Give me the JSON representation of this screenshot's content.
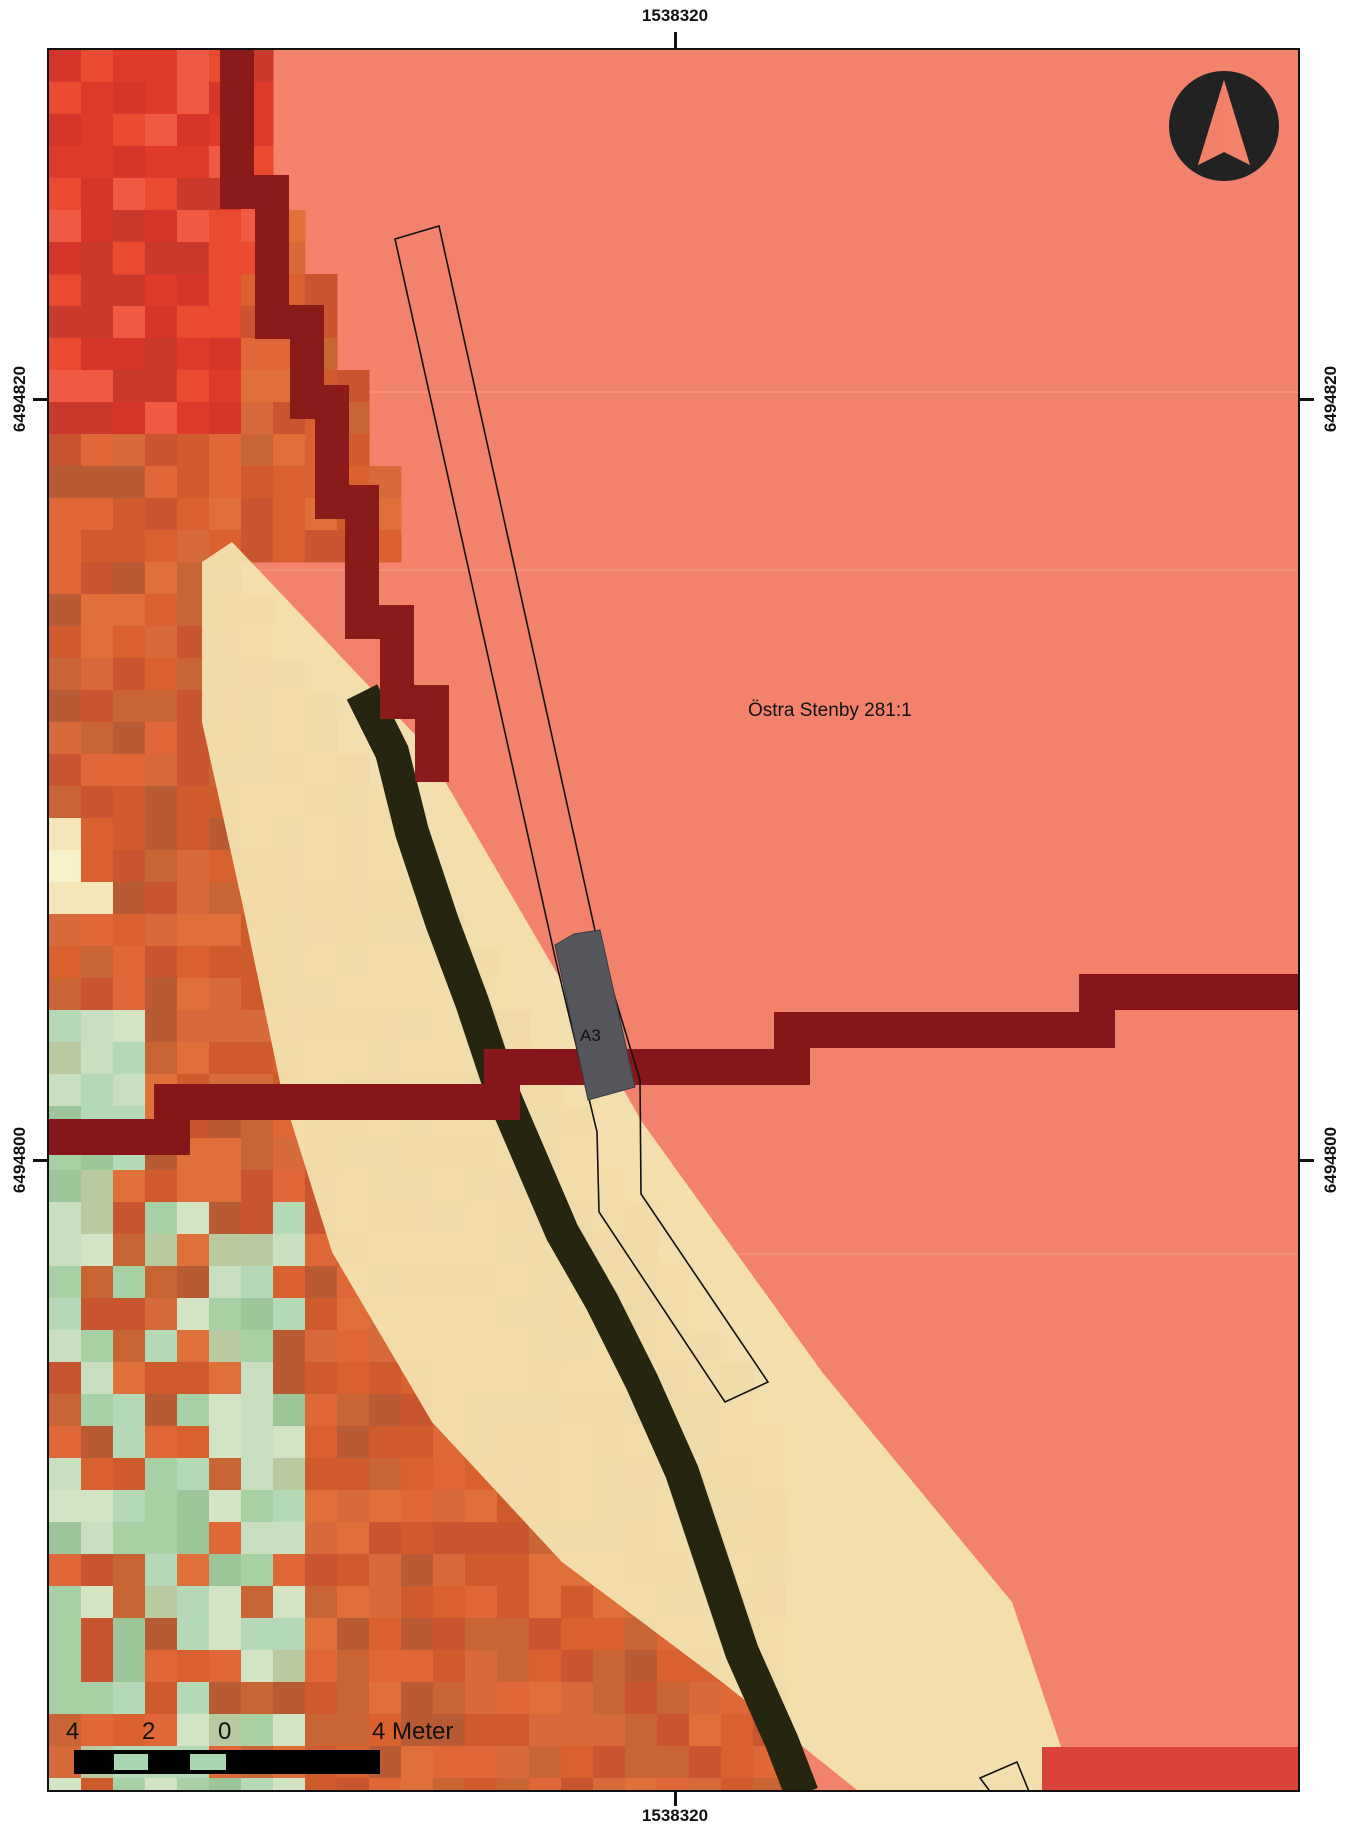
{
  "coordinates": {
    "top_x": "1538320",
    "bottom_x": "1538320",
    "left_upper_y": "6494820",
    "left_lower_y": "6494800",
    "right_upper_y": "6494820",
    "right_lower_y": "6494800"
  },
  "labels": {
    "parcel": "Östra Stenby 281:1",
    "trench": "A3"
  },
  "scale_bar": {
    "tick_4": "4",
    "tick_2": "2",
    "tick_0": "0",
    "tick_end": "4 Meter"
  },
  "colors": {
    "parcel_fill": "#f3826d",
    "boundary_dark": "#8a1818",
    "pale_strip": "#f5ecc4",
    "trench_fill": "#54565c"
  },
  "icons": {
    "north": "north-arrow-icon"
  }
}
